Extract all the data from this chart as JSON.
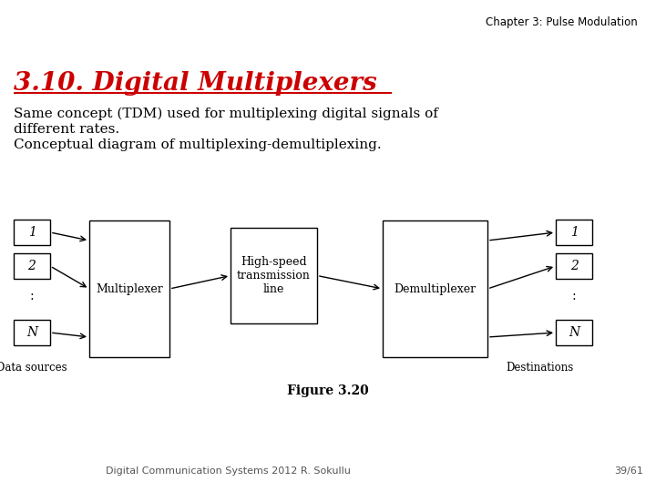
{
  "title_chapter": "Chapter 3: Pulse Modulation",
  "title_section": "3.10. Digital Multiplexers",
  "body_text_line1": "Same concept (TDM) used for multiplexing digital signals of",
  "body_text_line2": "different rates.",
  "body_text_line3": "Conceptual diagram of multiplexing-demultiplexing.",
  "figure_caption": "Figure 3.20",
  "footer_left": "Digital Communication Systems 2012 R. Sokullu",
  "footer_right": "39/61",
  "bg_color": "#ffffff",
  "title_color": "#cc0000",
  "text_color": "#000000",
  "source_labels": [
    "1",
    "2",
    ":",
    "N"
  ],
  "dest_labels": [
    "1",
    "2",
    ":",
    "N"
  ],
  "mux_label": "Multiplexer",
  "demux_label": "Demultiplexer",
  "hs_label": "High-speed\ntransmission\nline",
  "data_sources_label": "Data sources",
  "destinations_label": "Destinations"
}
